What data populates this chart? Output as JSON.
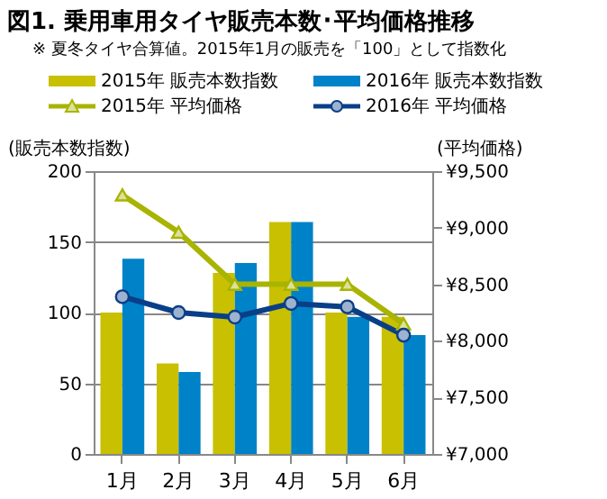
{
  "chart_data": {
    "type": "bar",
    "title": "図1. 乗用車用タイヤ販売本数･平均価格推移",
    "subtitle": "※ 夏冬タイヤ合算値。2015年1月の販売を「100」として指数化",
    "categories": [
      "1月",
      "2月",
      "3月",
      "4月",
      "5月",
      "6月"
    ],
    "series": [
      {
        "name": "2015年 販売本数指数",
        "color": "#c8c000",
        "values": [
          100,
          64,
          128,
          164,
          100,
          97
        ]
      },
      {
        "name": "2016年 販売本数指数",
        "color": "#0082c8",
        "values": [
          138,
          58,
          135,
          164,
          97,
          84
        ]
      },
      {
        "name": "2015年 平均価格",
        "type": "line",
        "axis": "y2",
        "marker": "triangle",
        "color": "#a8b400",
        "values": [
          9290,
          8960,
          8500,
          8500,
          8500,
          8150
        ]
      },
      {
        "name": "2016年 平均価格",
        "type": "line",
        "axis": "y2",
        "marker": "circle",
        "color": "#0a3f88",
        "values": [
          8390,
          8250,
          8210,
          8330,
          8300,
          8050
        ]
      }
    ],
    "ylabel": "(販売本数指数)",
    "y2label": "(平均価格)",
    "ylim": [
      0,
      200
    ],
    "yticks": [
      0,
      50,
      100,
      150,
      200
    ],
    "y2lim": [
      7000,
      9500
    ],
    "y2ticks": [
      {
        "value": 7000,
        "label": "¥7,000"
      },
      {
        "value": 7500,
        "label": "¥7,500"
      },
      {
        "value": 8000,
        "label": "¥8,000"
      },
      {
        "value": 8500,
        "label": "¥8,500"
      },
      {
        "value": 9000,
        "label": "¥9,000"
      },
      {
        "value": 9500,
        "label": "¥9,500"
      }
    ],
    "grid": "y",
    "legend": "top",
    "line_style": "solid"
  }
}
